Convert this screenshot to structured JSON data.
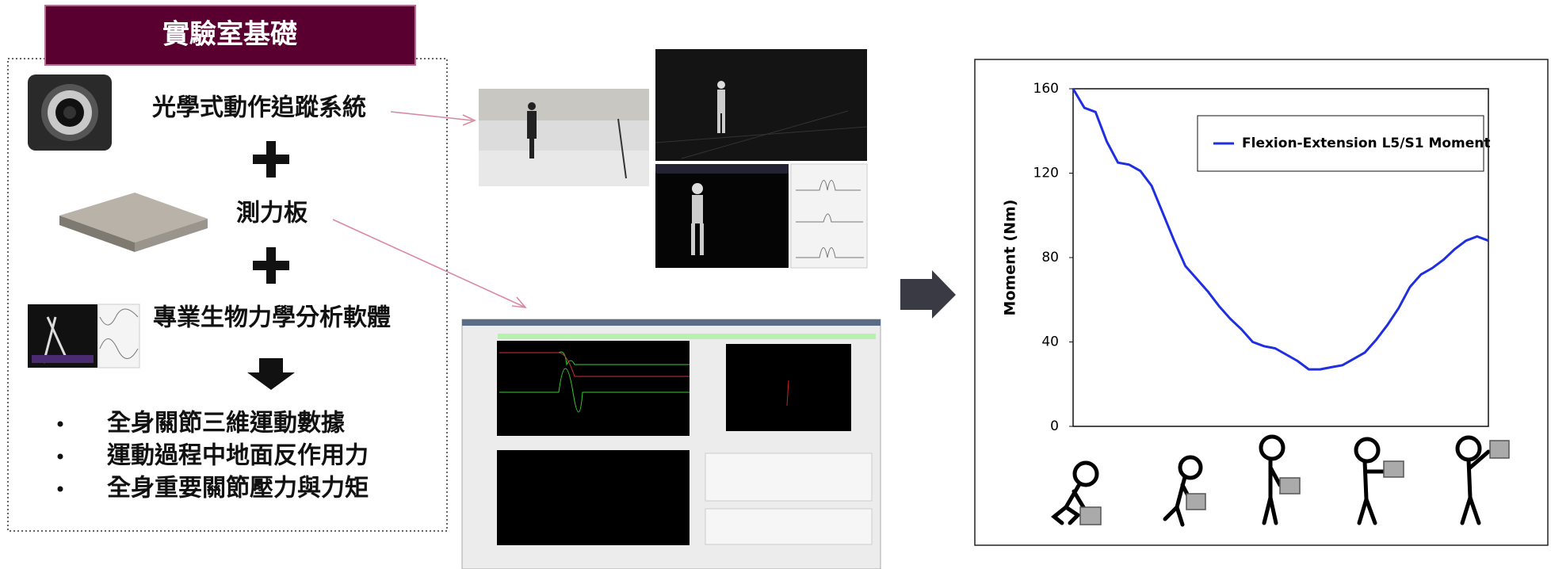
{
  "header": {
    "title": "實驗室基礎"
  },
  "items": [
    {
      "label": "光學式動作追蹤系統"
    },
    {
      "label": "測力板"
    },
    {
      "label": "專業生物力學分析軟體"
    }
  ],
  "bullets": [
    "全身關節三維運動數據",
    "運動過程中地面反作用力",
    "全身重要關節壓力與力矩"
  ],
  "chart_data": {
    "type": "line",
    "ylabel": "Moment (Nm)",
    "ylim": [
      0,
      160
    ],
    "yticks": [
      0,
      40,
      80,
      120,
      160
    ],
    "legend": "upper right",
    "series": [
      {
        "name": "Flexion-Extension L5/S1 Moment",
        "color": "#1f2fe0",
        "values": [
          160,
          151,
          149,
          135,
          125,
          124,
          121,
          114,
          101,
          88,
          76,
          70,
          64,
          57,
          51,
          46,
          40,
          38,
          37,
          34,
          31,
          27,
          27,
          28,
          29,
          32,
          35,
          41,
          48,
          56,
          66,
          72,
          75,
          79,
          84,
          88,
          90,
          88
        ]
      }
    ]
  }
}
